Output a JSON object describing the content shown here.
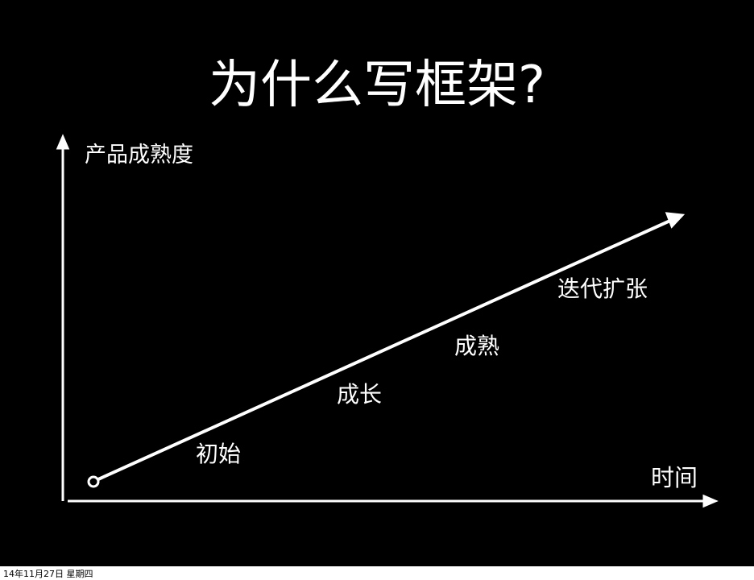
{
  "title": "为什么写框架?",
  "y_axis_label": "产品成熟度",
  "x_axis_label": "时间",
  "stages": [
    "初始",
    "成长",
    "成熟",
    "迭代扩张"
  ],
  "footer_date": "14年11月27日 星期四",
  "colors": {
    "background": "#000000",
    "foreground": "#ffffff"
  }
}
